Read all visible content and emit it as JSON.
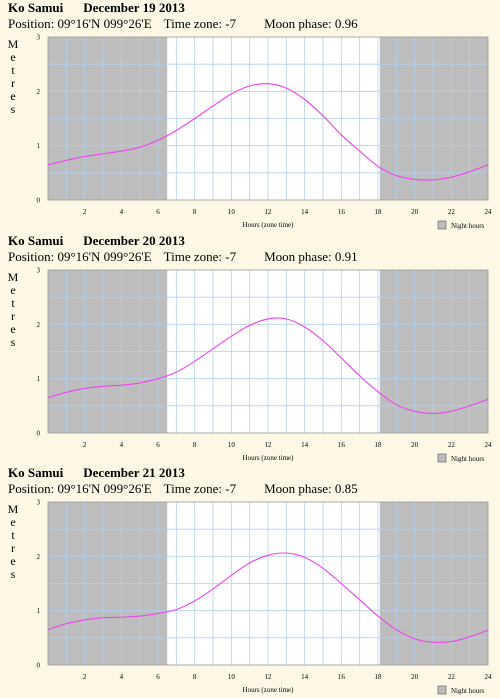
{
  "colors": {
    "background": "#fdf8e6",
    "night": "#bdbdbd",
    "grid": "#b4d0ee",
    "line": "#ee44ee"
  },
  "chart_data": [
    {
      "type": "line",
      "location": "Ko Samui",
      "date": "December 19 2013",
      "position_label": "Position: 09°16'N 099°26'E",
      "timezone_label": "Time zone: -7",
      "moonphase_label": "Moon phase: 0.96",
      "ylabel": "Metres",
      "xlabel": "Hours (zone time)",
      "legend": "Night hours",
      "xlim": [
        0,
        24
      ],
      "ylim": [
        0,
        3
      ],
      "xticks": [
        "2",
        "4",
        "6",
        "8",
        "10",
        "12",
        "14",
        "16",
        "18",
        "20",
        "22",
        "24"
      ],
      "yticks": [
        "0",
        "1",
        "2",
        "3"
      ],
      "night": [
        [
          0,
          6.5
        ],
        [
          18.1,
          24
        ]
      ],
      "x": [
        0,
        1,
        2,
        3,
        4,
        5,
        6,
        7,
        8,
        9,
        10,
        11,
        12,
        13,
        14,
        15,
        16,
        17,
        18,
        19,
        20,
        21,
        22,
        23,
        24
      ],
      "y": [
        0.65,
        0.73,
        0.8,
        0.85,
        0.9,
        0.97,
        1.1,
        1.28,
        1.5,
        1.73,
        1.95,
        2.1,
        2.14,
        2.06,
        1.85,
        1.55,
        1.2,
        0.9,
        0.62,
        0.45,
        0.38,
        0.37,
        0.42,
        0.52,
        0.65
      ]
    },
    {
      "type": "line",
      "location": "Ko Samui",
      "date": "December 20 2013",
      "position_label": "Position: 09°16'N 099°26'E",
      "timezone_label": "Time zone: -7",
      "moonphase_label": "Moon phase: 0.91",
      "ylabel": "Metres",
      "xlabel": "Hours (zone time)",
      "legend": "Night hours",
      "xlim": [
        0,
        24
      ],
      "ylim": [
        0,
        3
      ],
      "xticks": [
        "2",
        "4",
        "6",
        "8",
        "10",
        "12",
        "14",
        "16",
        "18",
        "20",
        "22",
        "24"
      ],
      "yticks": [
        "0",
        "1",
        "2",
        "3"
      ],
      "night": [
        [
          0,
          6.5
        ],
        [
          18.1,
          24
        ]
      ],
      "x": [
        0,
        1,
        2,
        3,
        4,
        5,
        6,
        7,
        8,
        9,
        10,
        11,
        12,
        13,
        14,
        15,
        16,
        17,
        18,
        19,
        20,
        21,
        22,
        23,
        24
      ],
      "y": [
        0.65,
        0.75,
        0.82,
        0.86,
        0.88,
        0.92,
        1.0,
        1.12,
        1.32,
        1.55,
        1.78,
        1.98,
        2.1,
        2.1,
        1.95,
        1.7,
        1.38,
        1.05,
        0.76,
        0.52,
        0.4,
        0.36,
        0.4,
        0.5,
        0.62
      ]
    },
    {
      "type": "line",
      "location": "Ko Samui",
      "date": "December 21 2013",
      "position_label": "Position: 09°16'N 099°26'E",
      "timezone_label": "Time zone: -7",
      "moonphase_label": "Moon phase: 0.85",
      "ylabel": "Metres",
      "xlabel": "Hours (zone time)",
      "legend": "Night hours",
      "xlim": [
        0,
        24
      ],
      "ylim": [
        0,
        3
      ],
      "xticks": [
        "2",
        "4",
        "6",
        "8",
        "10",
        "12",
        "14",
        "16",
        "18",
        "20",
        "22",
        "24"
      ],
      "yticks": [
        "0",
        "1",
        "2",
        "3"
      ],
      "night": [
        [
          0,
          6.5
        ],
        [
          18.1,
          24
        ]
      ],
      "x": [
        0,
        1,
        2,
        3,
        4,
        5,
        6,
        7,
        8,
        9,
        10,
        11,
        12,
        13,
        14,
        15,
        16,
        17,
        18,
        19,
        20,
        21,
        22,
        23,
        24
      ],
      "y": [
        0.65,
        0.76,
        0.83,
        0.87,
        0.88,
        0.9,
        0.95,
        1.02,
        1.18,
        1.4,
        1.65,
        1.88,
        2.02,
        2.06,
        1.98,
        1.78,
        1.5,
        1.2,
        0.9,
        0.65,
        0.48,
        0.42,
        0.43,
        0.52,
        0.64
      ]
    }
  ]
}
